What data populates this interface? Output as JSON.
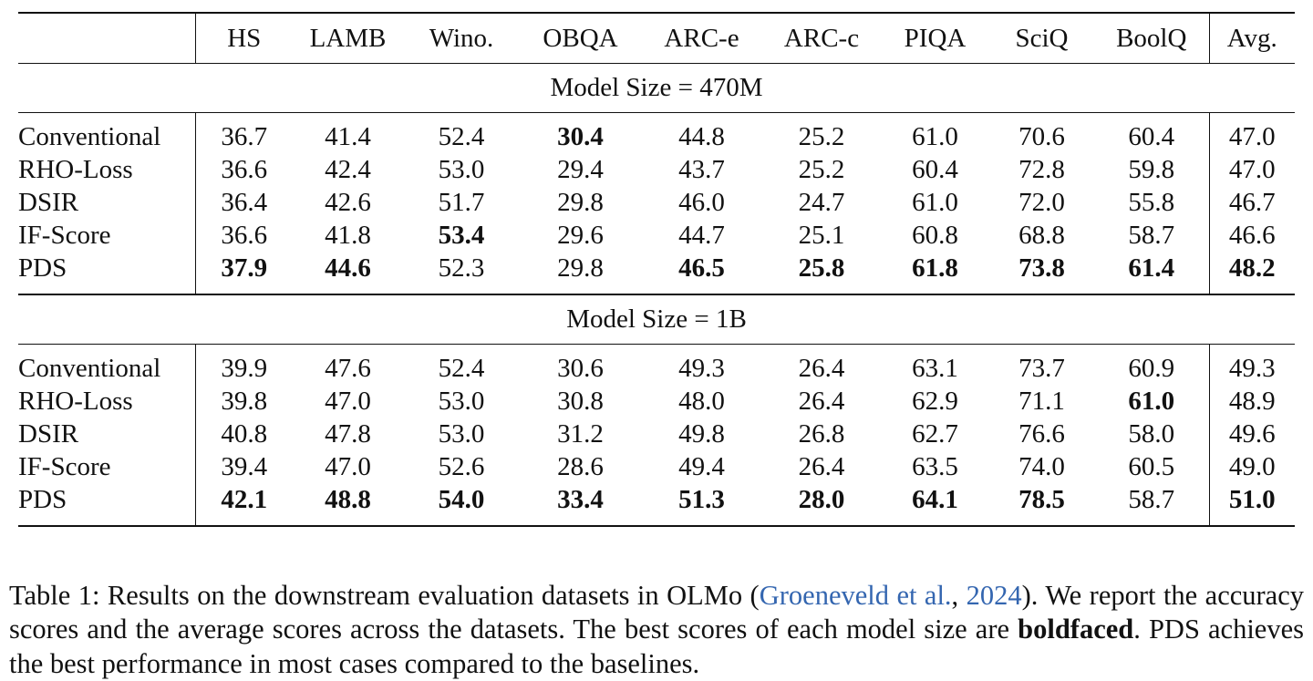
{
  "table": {
    "columns": [
      "",
      "HS",
      "LAMB",
      "Wino.",
      "OBQA",
      "ARC-e",
      "ARC-c",
      "PIQA",
      "SciQ",
      "BoolQ",
      "Avg."
    ],
    "sections": [
      {
        "title": "Model Size = 470M",
        "rows": [
          {
            "method": "Conventional",
            "values": [
              "36.7",
              "41.4",
              "52.4",
              "30.4",
              "44.8",
              "25.2",
              "61.0",
              "70.6",
              "60.4",
              "47.0"
            ],
            "bold": [
              3
            ]
          },
          {
            "method": "RHO-Loss",
            "values": [
              "36.6",
              "42.4",
              "53.0",
              "29.4",
              "43.7",
              "25.2",
              "60.4",
              "72.8",
              "59.8",
              "47.0"
            ],
            "bold": []
          },
          {
            "method": "DSIR",
            "values": [
              "36.4",
              "42.6",
              "51.7",
              "29.8",
              "46.0",
              "24.7",
              "61.0",
              "72.0",
              "55.8",
              "46.7"
            ],
            "bold": []
          },
          {
            "method": "IF-Score",
            "values": [
              "36.6",
              "41.8",
              "53.4",
              "29.6",
              "44.7",
              "25.1",
              "60.8",
              "68.8",
              "58.7",
              "46.6"
            ],
            "bold": [
              2
            ]
          },
          {
            "method": "PDS",
            "values": [
              "37.9",
              "44.6",
              "52.3",
              "29.8",
              "46.5",
              "25.8",
              "61.8",
              "73.8",
              "61.4",
              "48.2"
            ],
            "bold": [
              0,
              1,
              4,
              5,
              6,
              7,
              8,
              9
            ]
          }
        ]
      },
      {
        "title": "Model Size = 1B",
        "rows": [
          {
            "method": "Conventional",
            "values": [
              "39.9",
              "47.6",
              "52.4",
              "30.6",
              "49.3",
              "26.4",
              "63.1",
              "73.7",
              "60.9",
              "49.3"
            ],
            "bold": []
          },
          {
            "method": "RHO-Loss",
            "values": [
              "39.8",
              "47.0",
              "53.0",
              "30.8",
              "48.0",
              "26.4",
              "62.9",
              "71.1",
              "61.0",
              "48.9"
            ],
            "bold": [
              8
            ]
          },
          {
            "method": "DSIR",
            "values": [
              "40.8",
              "47.8",
              "53.0",
              "31.2",
              "49.8",
              "26.8",
              "62.7",
              "76.6",
              "58.0",
              "49.6"
            ],
            "bold": []
          },
          {
            "method": "IF-Score",
            "values": [
              "39.4",
              "47.0",
              "52.6",
              "28.6",
              "49.4",
              "26.4",
              "63.5",
              "74.0",
              "60.5",
              "49.0"
            ],
            "bold": []
          },
          {
            "method": "PDS",
            "values": [
              "42.1",
              "48.8",
              "54.0",
              "33.4",
              "51.3",
              "28.0",
              "64.1",
              "78.5",
              "58.7",
              "51.0"
            ],
            "bold": [
              0,
              1,
              2,
              3,
              4,
              5,
              6,
              7,
              9
            ]
          }
        ]
      }
    ]
  },
  "caption": {
    "part1": "Table 1: Results on the downstream evaluation datasets in OLMo (",
    "cite_author": "Groeneveld et al.",
    "cite_sep": ", ",
    "cite_year": "2024",
    "part2": ").  We report the accuracy scores and the average scores across the datasets. The best scores of each model size are ",
    "bold_word": "boldfaced",
    "part3": ". PDS achieves the best performance in most cases compared to the baselines.",
    "link_color": "#3466b0"
  }
}
